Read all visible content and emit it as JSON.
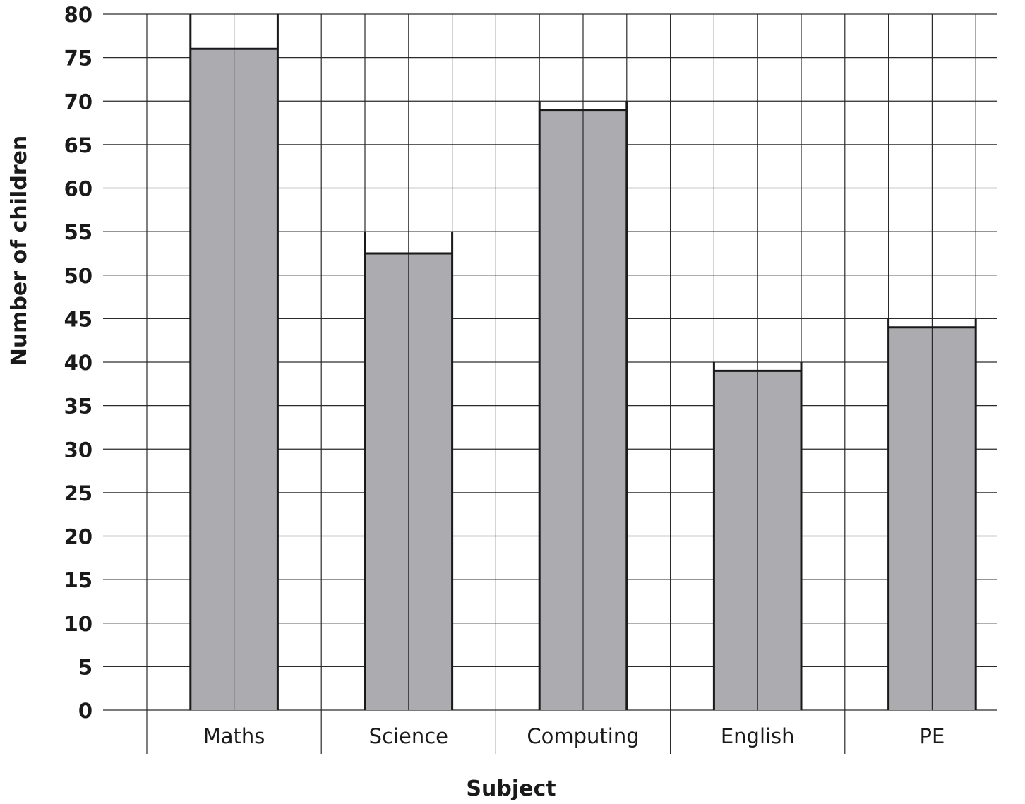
{
  "chart_data": {
    "type": "bar",
    "categories": [
      "Maths",
      "Science",
      "Computing",
      "English",
      "PE"
    ],
    "values": [
      76,
      52.5,
      69,
      39,
      44
    ],
    "xlabel": "Subject",
    "ylabel": "Number of children",
    "ylim": [
      0,
      80
    ],
    "yticks": [
      0,
      5,
      10,
      15,
      20,
      25,
      30,
      35,
      40,
      45,
      50,
      55,
      60,
      65,
      70,
      75,
      80
    ],
    "grid": true,
    "colors": {
      "bar_fill": "#acacb0",
      "line": "#1a1a1a"
    }
  }
}
